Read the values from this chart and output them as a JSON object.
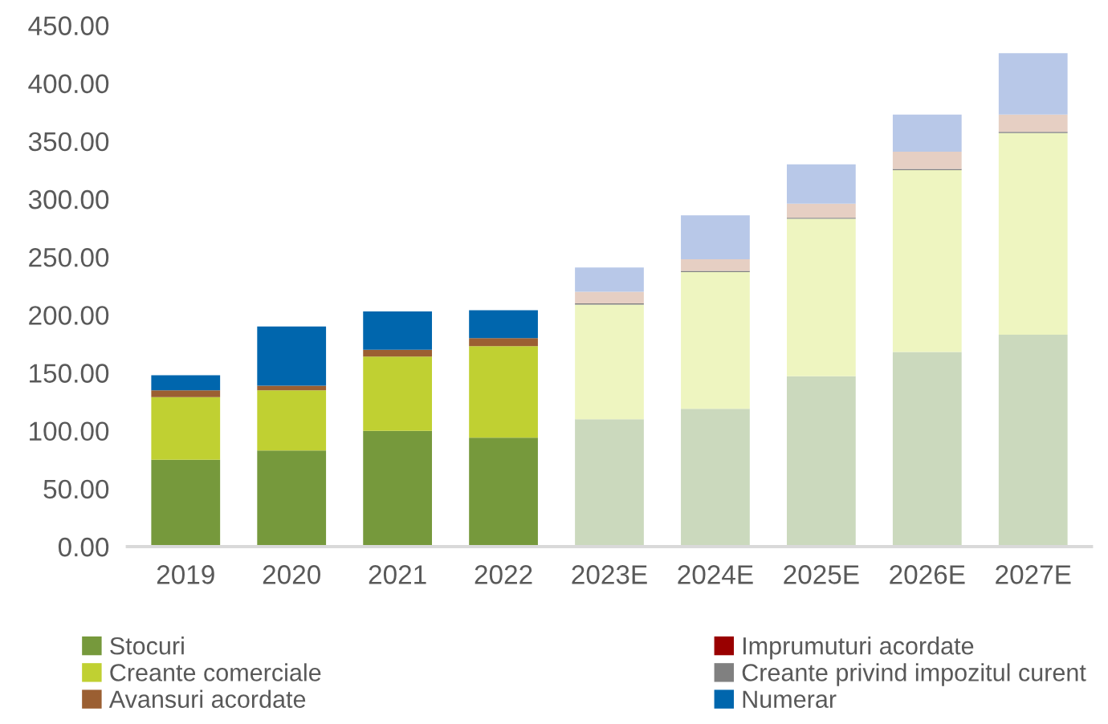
{
  "chart_data": {
    "type": "bar",
    "stacked": true,
    "categories": [
      "2019",
      "2020",
      "2021",
      "2022",
      "2023E",
      "2024E",
      "2025E",
      "2026E",
      "2027E"
    ],
    "ylim": [
      0,
      450
    ],
    "yticks": [
      {
        "value": 0,
        "label": "0.00"
      },
      {
        "value": 50,
        "label": "50.00"
      },
      {
        "value": 100,
        "label": "100.00"
      },
      {
        "value": 150,
        "label": "150.00"
      },
      {
        "value": 200,
        "label": "200.00"
      },
      {
        "value": 250,
        "label": "250.00"
      },
      {
        "value": 300,
        "label": "300.00"
      },
      {
        "value": 350,
        "label": "350.00"
      },
      {
        "value": 400,
        "label": "400.00"
      },
      {
        "value": 450,
        "label": "450.00"
      }
    ],
    "grid": false,
    "legend": "bottom",
    "series": [
      {
        "name": "Stocuri",
        "color": "#76993c",
        "colors": [
          "#76993c",
          "#76993c",
          "#76993c",
          "#76993c",
          "#cbd9bd",
          "#cbd9bd",
          "#cbd9bd",
          "#cbd9bd",
          "#cbd9bd"
        ],
        "values": [
          75,
          83,
          100,
          94,
          110,
          119,
          147,
          168,
          183
        ]
      },
      {
        "name": "Imprumuturi acordate",
        "color": "#990000",
        "values": [
          null,
          null,
          null,
          null,
          null,
          null,
          null,
          null,
          null
        ]
      },
      {
        "name": "Creante comerciale",
        "color": "#c0d032",
        "colors": [
          "#c0d032",
          "#c0d032",
          "#c0d032",
          "#c0d032",
          "#eef5c0",
          "#eef5c0",
          "#eef5c0",
          "#eef5c0",
          "#eef5c0"
        ],
        "values": [
          54,
          52,
          64,
          79,
          99,
          118,
          136,
          157,
          174
        ]
      },
      {
        "name": "Creante privind impozitul curent",
        "color": "#808080",
        "values": [
          null,
          null,
          null,
          null,
          1,
          1,
          1,
          1,
          1
        ]
      },
      {
        "name": "Avansuri acordate",
        "color": "#9b5f32",
        "colors": [
          "#9b5f32",
          "#9b5f32",
          "#9b5f32",
          "#9b5f32",
          "#e6cfc3",
          "#e6cfc3",
          "#e6cfc3",
          "#e6cfc3",
          "#e6cfc3"
        ],
        "values": [
          6,
          4,
          6,
          7,
          10,
          10,
          12,
          15,
          15
        ]
      },
      {
        "name": "Numerar",
        "color": "#0066ad",
        "colors": [
          "#0066ad",
          "#0066ad",
          "#0066ad",
          "#0066ad",
          "#b8c8e8",
          "#b8c8e8",
          "#b8c8e8",
          "#b8c8e8",
          "#b8c8e8"
        ],
        "values": [
          13,
          51,
          33,
          24,
          21,
          38,
          34,
          32,
          53
        ]
      }
    ]
  }
}
